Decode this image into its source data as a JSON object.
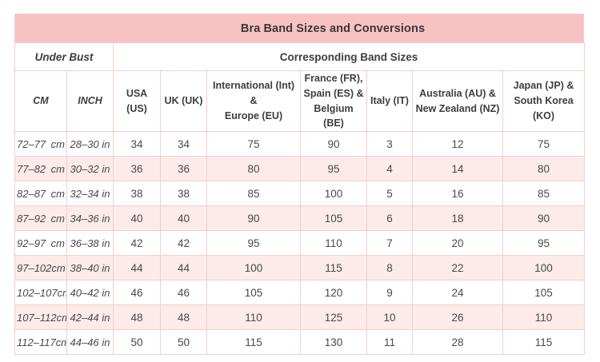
{
  "colors": {
    "title_bg": "#f9c2c2",
    "row_alt_bg": "#fcebe8",
    "border": "#f1cfcc",
    "text": "#4a484b",
    "header_text": "#3f3d40",
    "title_text": "#3b3739"
  },
  "table": {
    "title": "Bra Band Sizes and Conversions",
    "group_headers": {
      "under_bust": "Under Bust",
      "corresponding": "Corresponding Band Sizes"
    },
    "columns": [
      "CM",
      "INCH",
      "USA (US)",
      "UK (UK)",
      [
        "International (Int) &",
        "Europe (EU)"
      ],
      [
        "France (FR),",
        "Spain (ES) &",
        "Belgium (BE)"
      ],
      "Italy (IT)",
      [
        "Australia (AU) &",
        "New Zealand (NZ)"
      ],
      [
        "Japan (JP) &",
        "South Korea (KO)"
      ]
    ],
    "units": {
      "cm": "cm",
      "inch": "in"
    },
    "rows": [
      {
        "cm": "72–77",
        "inch": "28–30",
        "bands": [
          34,
          34,
          75,
          90,
          3,
          12,
          75
        ]
      },
      {
        "cm": "77–82",
        "inch": "30–32",
        "bands": [
          36,
          36,
          80,
          95,
          4,
          14,
          80
        ]
      },
      {
        "cm": "82–87",
        "inch": "32–34",
        "bands": [
          38,
          38,
          85,
          100,
          5,
          16,
          85
        ]
      },
      {
        "cm": "87–92",
        "inch": "34–36",
        "bands": [
          40,
          40,
          90,
          105,
          6,
          18,
          90
        ]
      },
      {
        "cm": "92–97",
        "inch": "36–38",
        "bands": [
          42,
          42,
          95,
          110,
          7,
          20,
          95
        ]
      },
      {
        "cm": "97–102",
        "inch": "38–40",
        "bands": [
          44,
          44,
          100,
          115,
          8,
          22,
          100
        ]
      },
      {
        "cm": "102–107",
        "inch": "40–42",
        "bands": [
          46,
          46,
          105,
          120,
          9,
          24,
          105
        ]
      },
      {
        "cm": "107–112",
        "inch": "42–44",
        "bands": [
          48,
          48,
          110,
          125,
          10,
          26,
          110
        ]
      },
      {
        "cm": "112–117",
        "inch": "44–46",
        "bands": [
          50,
          50,
          115,
          130,
          11,
          28,
          115
        ]
      }
    ]
  }
}
